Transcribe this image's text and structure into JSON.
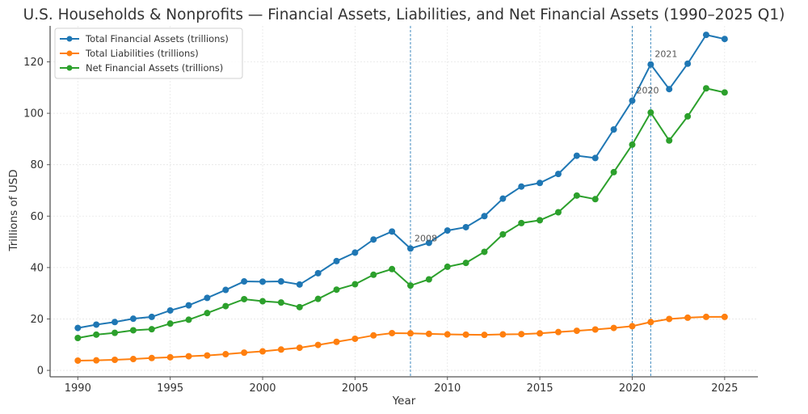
{
  "chart_data": {
    "type": "line",
    "title": "U.S. Households & Nonprofits — Financial Assets, Liabilities, and Net Financial Assets (1990–2025 Q1)",
    "xlabel": "Year",
    "ylabel": "Trillions of USD",
    "xlim": [
      1988.5,
      2026.8
    ],
    "ylim": [
      -2.5,
      134
    ],
    "xticks": [
      1990,
      1995,
      2000,
      2005,
      2010,
      2015,
      2020,
      2025
    ],
    "yticks": [
      0,
      20,
      40,
      60,
      80,
      100,
      120
    ],
    "grid": true,
    "legend_position": "top-left",
    "x": [
      1990,
      1991,
      1992,
      1993,
      1994,
      1995,
      1996,
      1997,
      1998,
      1999,
      2000,
      2001,
      2002,
      2003,
      2004,
      2005,
      2006,
      2007,
      2008,
      2009,
      2010,
      2011,
      2012,
      2013,
      2014,
      2015,
      2016,
      2017,
      2018,
      2019,
      2020,
      2021,
      2022,
      2023,
      2024,
      2025
    ],
    "series": [
      {
        "name": "Total Financial Assets (trillions)",
        "color": "#1f77b4",
        "values": [
          16.5,
          17.8,
          18.8,
          20.1,
          20.8,
          23.3,
          25.3,
          28.2,
          31.3,
          34.6,
          34.5,
          34.6,
          33.4,
          37.8,
          42.5,
          45.8,
          50.9,
          54.0,
          47.4,
          49.6,
          54.4,
          55.7,
          60.0,
          66.8,
          71.5,
          72.9,
          76.4,
          83.5,
          82.6,
          93.7,
          104.9,
          119.0,
          109.4,
          119.3,
          130.5,
          128.9
        ]
      },
      {
        "name": "Total Liabilities (trillions)",
        "color": "#ff7f0e",
        "values": [
          3.8,
          3.9,
          4.1,
          4.4,
          4.8,
          5.1,
          5.5,
          5.8,
          6.3,
          6.9,
          7.4,
          8.1,
          8.8,
          9.9,
          11.1,
          12.3,
          13.6,
          14.5,
          14.4,
          14.2,
          14.0,
          13.9,
          13.8,
          14.0,
          14.1,
          14.4,
          14.9,
          15.4,
          15.9,
          16.5,
          17.2,
          18.8,
          20.0,
          20.5,
          20.8,
          20.8
        ]
      },
      {
        "name": "Net Financial Assets (trillions)",
        "color": "#2ca02c",
        "values": [
          12.6,
          13.9,
          14.6,
          15.6,
          16.0,
          18.2,
          19.7,
          22.3,
          25.0,
          27.7,
          26.9,
          26.4,
          24.6,
          27.8,
          31.4,
          33.5,
          37.2,
          39.4,
          33.0,
          35.4,
          40.3,
          41.8,
          46.1,
          52.9,
          57.3,
          58.4,
          61.5,
          68.0,
          66.6,
          77.1,
          87.8,
          100.3,
          89.4,
          98.8,
          109.7,
          108.1
        ]
      }
    ],
    "vertical_lines": [
      {
        "x": 2008,
        "label": "2008",
        "color": "#1f77b4"
      },
      {
        "x": 2020,
        "label": "2020",
        "color": "#1f77b4"
      },
      {
        "x": 2021,
        "label": "2021",
        "color": "#1f77b4"
      }
    ],
    "annotations": [
      {
        "text": "2008",
        "x": 2008,
        "y": 47.4
      },
      {
        "text": "2020",
        "x": 2020,
        "y": 104.9
      },
      {
        "text": "2021",
        "x": 2021,
        "y": 119.0
      }
    ]
  }
}
